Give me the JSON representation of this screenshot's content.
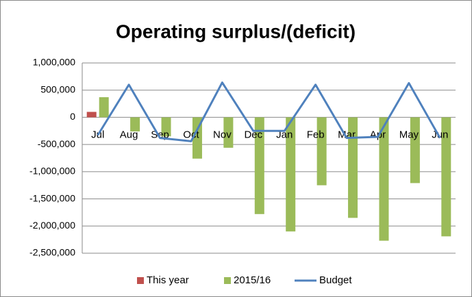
{
  "chart_data": {
    "type": "bar",
    "title": "Operating surplus/(deficit)",
    "categories": [
      "Jul",
      "Aug",
      "Sep",
      "Oct",
      "Nov",
      "Dec",
      "Jan",
      "Feb",
      "Mar",
      "Apr",
      "May",
      "Jun"
    ],
    "series": [
      {
        "name": "This year",
        "color": "#c0504d",
        "type": "bar",
        "values": [
          100000,
          null,
          null,
          null,
          null,
          null,
          null,
          null,
          null,
          null,
          null,
          null
        ]
      },
      {
        "name": "2015/16",
        "color": "#9bbb59",
        "type": "bar",
        "values": [
          370000,
          -260000,
          -350000,
          -760000,
          -560000,
          -1780000,
          -2100000,
          -1250000,
          -1850000,
          -2270000,
          -1210000,
          -2190000
        ]
      },
      {
        "name": "Budget",
        "color": "#4f81bd",
        "type": "line",
        "values": [
          -330000,
          600000,
          -380000,
          -440000,
          640000,
          -250000,
          -250000,
          600000,
          -380000,
          -360000,
          630000,
          -380000
        ]
      }
    ],
    "ylim": [
      -2500000,
      1000000
    ],
    "yticks": [
      {
        "value": -2500000,
        "label": "-2,500,000"
      },
      {
        "value": -2000000,
        "label": "-2,000,000"
      },
      {
        "value": -1500000,
        "label": "-1,500,000"
      },
      {
        "value": -1000000,
        "label": "-1,000,000"
      },
      {
        "value": -500000,
        "label": "-500,000"
      },
      0,
      {
        "value": 500000,
        "label": "500,000"
      },
      {
        "value": 1000000,
        "label": "1,000,000"
      }
    ],
    "grid": true,
    "legend": "bottom"
  }
}
